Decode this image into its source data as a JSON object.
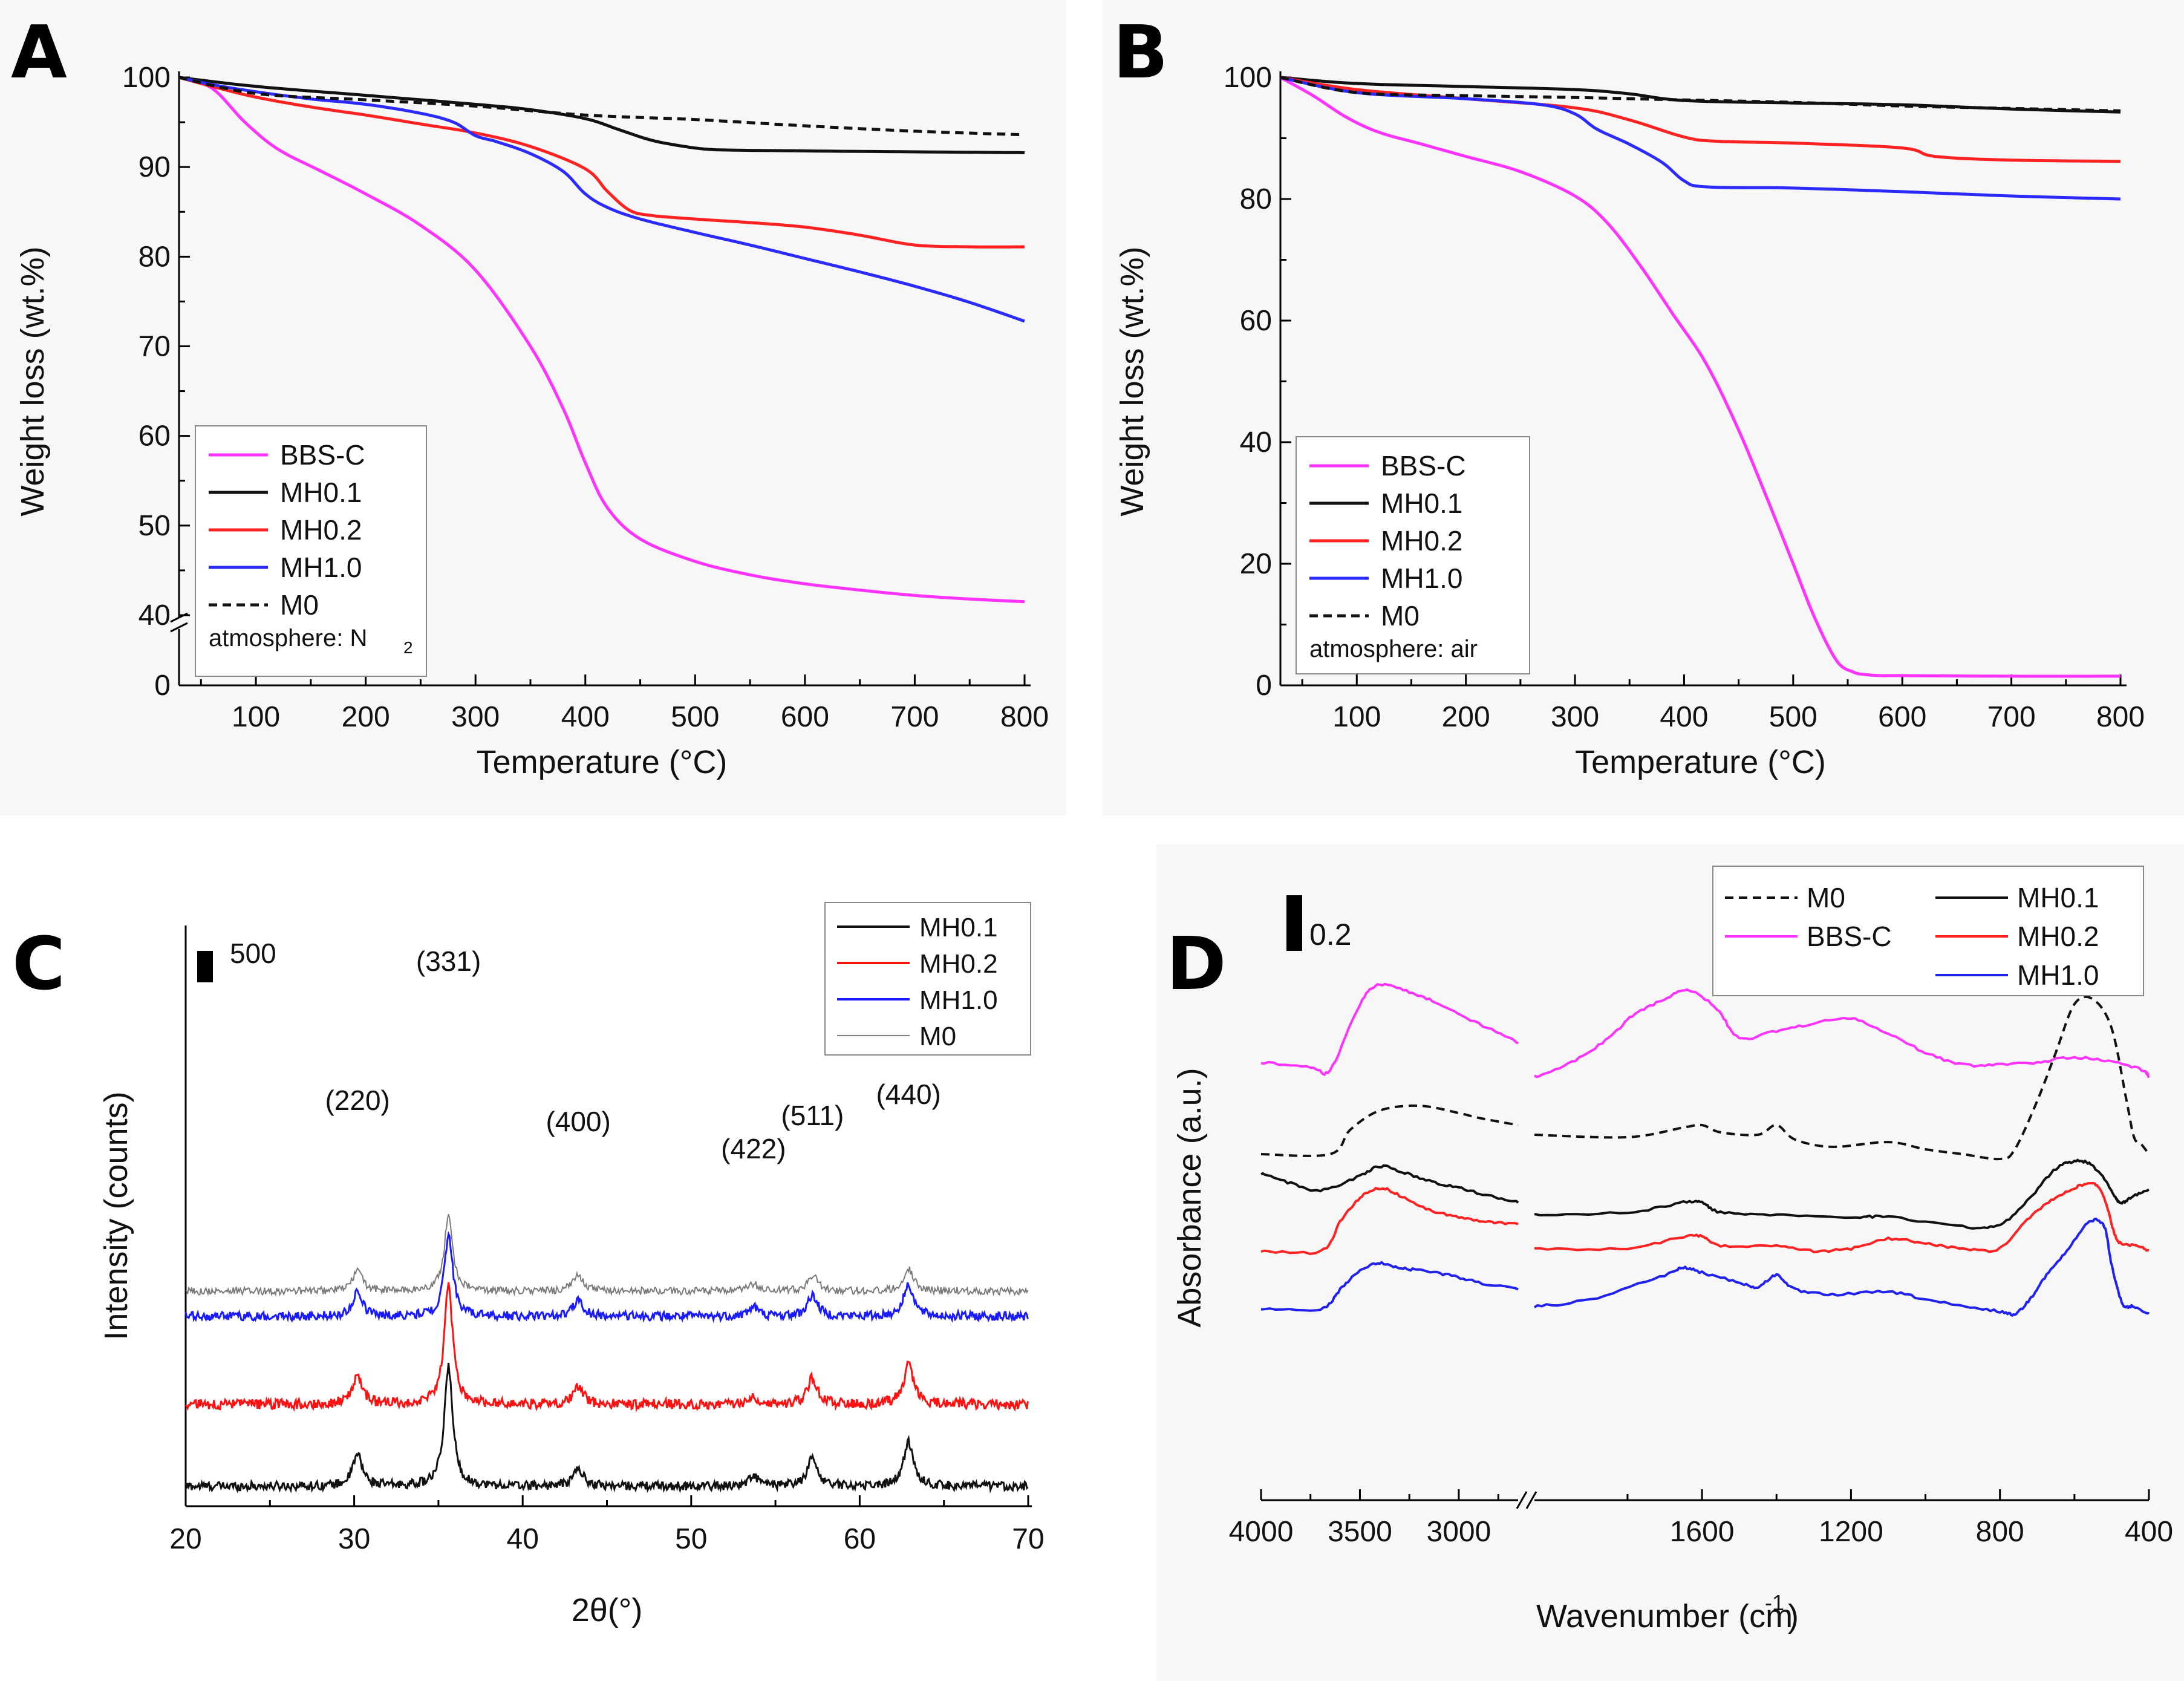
{
  "chart_data": [
    {
      "panel_letter": "A",
      "type": "line",
      "xlabel": "Temperature (°C)",
      "ylabel": "Weight loss (wt.%)",
      "xlim": [
        30,
        800
      ],
      "ylim": [
        0,
        100
      ],
      "axis_break": "y between 0 and 40",
      "xticks": [
        "100",
        "200",
        "300",
        "400",
        "500",
        "600",
        "700",
        "800"
      ],
      "yticks": [
        "0",
        "40",
        "50",
        "60",
        "70",
        "80",
        "90",
        "100"
      ],
      "legend": [
        "BBS-C",
        "MH0.1",
        "MH0.2",
        "MH1.0",
        "M0"
      ],
      "legend_note": "atmosphere: N",
      "legend_note_sub": "2",
      "series": [
        {
          "name": "BBS-C",
          "color": "#ff33ff",
          "dash": "solid",
          "x": [
            30,
            60,
            90,
            120,
            160,
            200,
            250,
            300,
            350,
            380,
            400,
            420,
            450,
            500,
            550,
            600,
            650,
            700,
            750,
            800
          ],
          "y": [
            100,
            98.8,
            95,
            92,
            89.5,
            87,
            83.5,
            78.5,
            70,
            63,
            57,
            52,
            48.5,
            46,
            44.5,
            43.5,
            42.8,
            42.2,
            41.8,
            41.5
          ]
        },
        {
          "name": "MH0.1",
          "color": "#111111",
          "dash": "solid",
          "x": [
            30,
            100,
            200,
            300,
            350,
            400,
            430,
            460,
            490,
            510,
            530,
            600,
            700,
            800
          ],
          "y": [
            100,
            99,
            98,
            97,
            96.4,
            95.4,
            94.2,
            93,
            92.3,
            92,
            91.9,
            91.8,
            91.7,
            91.6
          ]
        },
        {
          "name": "MH0.2",
          "color": "#ff2222",
          "dash": "solid",
          "x": [
            30,
            60,
            100,
            150,
            200,
            250,
            300,
            350,
            400,
            420,
            440,
            460,
            500,
            550,
            600,
            650,
            700,
            750,
            800
          ],
          "y": [
            100,
            99,
            97.8,
            96.7,
            95.8,
            94.8,
            93.8,
            92.3,
            89.8,
            87.3,
            85.2,
            84.6,
            84.2,
            83.8,
            83.3,
            82.4,
            81.3,
            81.1,
            81.1
          ]
        },
        {
          "name": "MH1.0",
          "color": "#2b2bff",
          "dash": "solid",
          "x": [
            30,
            60,
            100,
            150,
            200,
            250,
            280,
            300,
            320,
            350,
            380,
            400,
            420,
            450,
            500,
            550,
            600,
            650,
            700,
            750,
            800
          ],
          "y": [
            100,
            99.2,
            98.4,
            97.6,
            97,
            96,
            95,
            93.5,
            92.8,
            91.5,
            89.5,
            87,
            85.5,
            84.2,
            82.7,
            81.3,
            79.8,
            78.3,
            76.7,
            74.9,
            72.8
          ]
        },
        {
          "name": "M0",
          "color": "#111111",
          "dash": "dashed",
          "x": [
            30,
            100,
            200,
            300,
            400,
            500,
            600,
            700,
            800
          ],
          "y": [
            100,
            98.2,
            97.5,
            96.8,
            95.8,
            95.3,
            94.6,
            94,
            93.6
          ]
        }
      ]
    },
    {
      "panel_letter": "B",
      "type": "line",
      "xlabel": "Temperature (°C)",
      "ylabel": "Weight loss (wt.%)",
      "xlim": [
        30,
        800
      ],
      "ylim": [
        0,
        100
      ],
      "xticks": [
        "100",
        "200",
        "300",
        "400",
        "500",
        "600",
        "700",
        "800"
      ],
      "yticks": [
        "0",
        "20",
        "40",
        "60",
        "80",
        "100"
      ],
      "legend": [
        "BBS-C",
        "MH0.1",
        "MH0.2",
        "MH1.0",
        "M0"
      ],
      "legend_note": "atmosphere: air",
      "series": [
        {
          "name": "BBS-C",
          "color": "#ff33ff",
          "dash": "solid",
          "x": [
            30,
            60,
            90,
            120,
            160,
            200,
            250,
            300,
            330,
            360,
            390,
            420,
            450,
            480,
            500,
            520,
            540,
            555,
            565,
            580,
            600,
            700,
            800
          ],
          "y": [
            100,
            97,
            93.5,
            91,
            89,
            87,
            84.5,
            80.5,
            76,
            69,
            61,
            53,
            42,
            29,
            20,
            11,
            4,
            2.2,
            1.8,
            1.6,
            1.6,
            1.5,
            1.5
          ]
        },
        {
          "name": "MH0.1",
          "color": "#111111",
          "dash": "solid",
          "x": [
            30,
            100,
            200,
            300,
            350,
            400,
            500,
            600,
            700,
            800
          ],
          "y": [
            100,
            99,
            98.5,
            98,
            97.3,
            96.2,
            95.8,
            95.5,
            94.8,
            94.3
          ]
        },
        {
          "name": "MH0.2",
          "color": "#ff2222",
          "dash": "solid",
          "x": [
            30,
            100,
            200,
            300,
            350,
            400,
            430,
            500,
            600,
            630,
            700,
            800
          ],
          "y": [
            100,
            98,
            96.5,
            95,
            93,
            90.2,
            89.5,
            89.2,
            88.4,
            87,
            86.4,
            86.2
          ]
        },
        {
          "name": "MH1.0",
          "color": "#2b2bff",
          "dash": "solid",
          "x": [
            30,
            100,
            200,
            270,
            300,
            320,
            350,
            380,
            400,
            420,
            500,
            600,
            700,
            800
          ],
          "y": [
            100,
            97.5,
            96.5,
            95.5,
            94,
            91.5,
            89,
            86,
            83,
            82,
            81.8,
            81.2,
            80.5,
            80
          ]
        },
        {
          "name": "M0",
          "color": "#111111",
          "dash": "dashed",
          "x": [
            30,
            100,
            200,
            300,
            400,
            500,
            600,
            700,
            800
          ],
          "y": [
            100,
            97.5,
            97,
            96.7,
            96.3,
            95.9,
            95.3,
            94.9,
            94.5
          ]
        }
      ]
    },
    {
      "panel_letter": "C",
      "type": "line",
      "xlabel": "2θ(°)",
      "ylabel": "Intensity (counts)",
      "xlim": [
        20,
        70
      ],
      "xticks": [
        "20",
        "30",
        "40",
        "50",
        "60",
        "70"
      ],
      "scale_bar_label": "500",
      "scale_bar_counts": 500,
      "peaks": [
        {
          "label": "(220)",
          "two_theta": 30.2
        },
        {
          "label": "(331)",
          "two_theta": 35.6
        },
        {
          "label": "(400)",
          "two_theta": 43.3
        },
        {
          "label": "(422)",
          "two_theta": 53.7
        },
        {
          "label": "(511)",
          "two_theta": 57.2
        },
        {
          "label": "(440)",
          "two_theta": 62.9
        }
      ],
      "legend": [
        "MH0.1",
        "MH0.2",
        "MH1.0",
        "M0"
      ],
      "series": [
        {
          "name": "MH0.1",
          "color": "#111111",
          "baseline_counts": 0,
          "peak_heights": [
            500,
            1900,
            280,
            160,
            450,
            700
          ],
          "noise": 70
        },
        {
          "name": "MH0.2",
          "color": "#ff1111",
          "baseline_counts": 1300,
          "peak_heights": [
            460,
            1900,
            280,
            130,
            420,
            650
          ],
          "noise": 80
        },
        {
          "name": "MH1.0",
          "color": "#1a1aff",
          "baseline_counts": 2700,
          "peak_heights": [
            380,
            1300,
            260,
            150,
            340,
            510
          ],
          "noise": 70
        },
        {
          "name": "M0",
          "color": "#7a7a7a",
          "baseline_counts": 3100,
          "peak_heights": [
            330,
            1200,
            270,
            110,
            250,
            360
          ],
          "noise": 60
        }
      ]
    },
    {
      "panel_letter": "D",
      "type": "line",
      "xlabel": "Wavenumber (cm",
      "xlabel_sup": "-1",
      "xlabel_end": ")",
      "ylabel": "Absorbance (a.u.)",
      "x_segments": [
        [
          4000,
          2700
        ],
        [
          2050,
          400
        ]
      ],
      "axis_break": "x between 2700 and 2050",
      "xticks": [
        "4000",
        "3500",
        "3000",
        "1600",
        "1200",
        "800",
        "400"
      ],
      "scale_bar_label": "0.2",
      "legend": [
        "M0",
        "BBS-C",
        "MH0.1",
        "MH0.2",
        "MH1.0"
      ],
      "series": [
        {
          "name": "BBS-C",
          "color": "#ff33ff",
          "dash": "solid",
          "x": [
            4000,
            3750,
            3650,
            3500,
            3400,
            3250,
            3100,
            2900,
            2700,
            2050,
            1950,
            1850,
            1780,
            1700,
            1640,
            1560,
            1500,
            1400,
            1300,
            1200,
            1100,
            1000,
            900,
            800,
            700,
            600,
            500,
            420,
            400
          ],
          "y": [
            0.06,
            0.04,
            0.03,
            0.3,
            0.38,
            0.35,
            0.3,
            0.22,
            0.14,
            0.0,
            0.06,
            0.16,
            0.26,
            0.32,
            0.36,
            0.28,
            0.16,
            0.19,
            0.22,
            0.24,
            0.18,
            0.1,
            0.05,
            0.05,
            0.06,
            0.08,
            0.06,
            0.03,
            0.0
          ]
        },
        {
          "name": "M0",
          "color": "#111111",
          "dash": "dashed",
          "x": [
            4000,
            3650,
            3550,
            3400,
            3200,
            3000,
            2900,
            2700,
            2050,
            1800,
            1650,
            1600,
            1550,
            1450,
            1400,
            1350,
            1250,
            1100,
            1000,
            900,
            800,
            760,
            700,
            650,
            600,
            550,
            500,
            460,
            440,
            420,
            400
          ],
          "y": [
            -0.32,
            -0.32,
            -0.22,
            -0.14,
            -0.12,
            -0.15,
            -0.17,
            -0.2,
            -0.24,
            -0.25,
            -0.21,
            -0.2,
            -0.23,
            -0.24,
            -0.2,
            -0.26,
            -0.29,
            -0.27,
            -0.3,
            -0.32,
            -0.34,
            -0.3,
            -0.1,
            0.1,
            0.3,
            0.32,
            0.2,
            -0.1,
            -0.25,
            -0.28,
            -0.32
          ]
        },
        {
          "name": "MH0.1",
          "color": "#111111",
          "dash": "solid",
          "x": [
            4000,
            3850,
            3700,
            3500,
            3400,
            3300,
            3150,
            3000,
            2850,
            2700,
            2050,
            1800,
            1650,
            1600,
            1550,
            1400,
            1200,
            1100,
            900,
            800,
            720,
            650,
            600,
            560,
            520,
            490,
            470,
            440,
            400
          ],
          "y": [
            -0.4,
            -0.44,
            -0.47,
            -0.41,
            -0.37,
            -0.39,
            -0.43,
            -0.46,
            -0.49,
            -0.52,
            -0.57,
            -0.56,
            -0.52,
            -0.52,
            -0.56,
            -0.57,
            -0.58,
            -0.58,
            -0.62,
            -0.61,
            -0.5,
            -0.38,
            -0.35,
            -0.36,
            -0.42,
            -0.5,
            -0.52,
            -0.49,
            -0.47
          ]
        },
        {
          "name": "MH0.2",
          "color": "#ff2222",
          "dash": "solid",
          "x": [
            4000,
            3700,
            3600,
            3500,
            3400,
            3300,
            3150,
            3000,
            2850,
            2700,
            2050,
            1800,
            1650,
            1600,
            1550,
            1400,
            1300,
            1200,
            1100,
            1000,
            900,
            800,
            720,
            650,
            600,
            550,
            520,
            490,
            470,
            430,
            400
          ],
          "y": [
            -0.72,
            -0.72,
            -0.6,
            -0.5,
            -0.46,
            -0.49,
            -0.55,
            -0.58,
            -0.6,
            -0.61,
            -0.71,
            -0.71,
            -0.66,
            -0.66,
            -0.7,
            -0.7,
            -0.72,
            -0.71,
            -0.67,
            -0.69,
            -0.71,
            -0.71,
            -0.58,
            -0.5,
            -0.46,
            -0.44,
            -0.5,
            -0.66,
            -0.69,
            -0.7,
            -0.72
          ]
        },
        {
          "name": "MH1.0",
          "color": "#2222ee",
          "dash": "solid",
          "x": [
            4000,
            3700,
            3600,
            3500,
            3400,
            3300,
            3200,
            3050,
            2900,
            2700,
            2050,
            1900,
            1700,
            1650,
            1600,
            1500,
            1450,
            1400,
            1350,
            1250,
            1100,
            1000,
            900,
            800,
            760,
            720,
            680,
            620,
            560,
            520,
            500,
            470,
            440,
            400
          ],
          "y": [
            -0.96,
            -0.96,
            -0.88,
            -0.8,
            -0.77,
            -0.79,
            -0.8,
            -0.82,
            -0.85,
            -0.88,
            -0.95,
            -0.92,
            -0.82,
            -0.79,
            -0.81,
            -0.85,
            -0.87,
            -0.82,
            -0.88,
            -0.9,
            -0.89,
            -0.92,
            -0.95,
            -0.97,
            -0.98,
            -0.92,
            -0.83,
            -0.72,
            -0.6,
            -0.62,
            -0.78,
            -0.94,
            -0.95,
            -0.98
          ]
        }
      ]
    }
  ]
}
